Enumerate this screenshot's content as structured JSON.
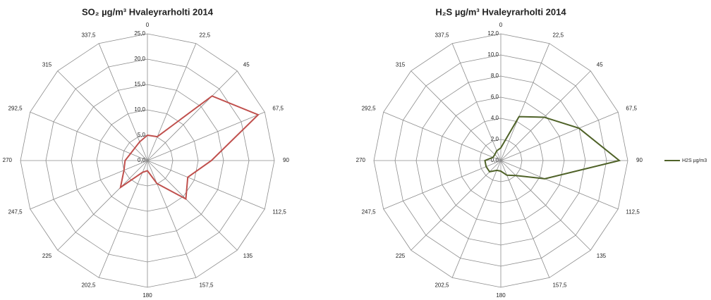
{
  "chart_data": [
    {
      "type": "radar",
      "title": "SO₂ µg/m³ Hvaleyrarholti 2014",
      "categories": [
        "0",
        "22,5",
        "45",
        "67,5",
        "90",
        "112,5",
        "135",
        "157,5",
        "180",
        "202,5",
        "225",
        "247,5",
        "270",
        "292,5",
        "315",
        "337,5"
      ],
      "series": [
        {
          "color": "#c0504d",
          "values": [
            5.0,
            5.1,
            18.0,
            23.6,
            12.6,
            8.6,
            10.7,
            4.9,
            2.0,
            2.5,
            7.5,
            5.0,
            4.4,
            3.6,
            3.5,
            4.0
          ]
        }
      ],
      "ylim": [
        0,
        25
      ],
      "yticks": [
        {
          "value": 0,
          "label": "0,0"
        },
        {
          "value": 5,
          "label": "5,0"
        },
        {
          "value": 10,
          "label": "10,0"
        },
        {
          "value": 15,
          "label": "15,0"
        },
        {
          "value": 20,
          "label": "20,0"
        },
        {
          "value": 25,
          "label": "25,0"
        }
      ]
    },
    {
      "type": "radar",
      "title": "H₂S µg/m³ Hvaleyrarholti 2014",
      "categories": [
        "0",
        "22,5",
        "45",
        "67,5",
        "90",
        "112,5",
        "135",
        "157,5",
        "180",
        "202,5",
        "225",
        "247,5",
        "270",
        "292,5",
        "315",
        "337,5"
      ],
      "series": [
        {
          "name": "H2S µg/m3",
          "color": "#4f6228",
          "values": [
            1.2,
            4.5,
            5.8,
            8.0,
            11.2,
            4.5,
            2.0,
            1.5,
            1.0,
            1.0,
            1.5,
            1.5,
            1.5,
            0.8,
            0.8,
            1.0
          ]
        }
      ],
      "ylim": [
        0,
        12
      ],
      "yticks": [
        {
          "value": 0,
          "label": "0,0"
        },
        {
          "value": 2,
          "label": "2,0"
        },
        {
          "value": 4,
          "label": "4,0"
        },
        {
          "value": 6,
          "label": "6,0"
        },
        {
          "value": 8,
          "label": "8,0"
        },
        {
          "value": 10,
          "label": "10,0"
        },
        {
          "value": 12,
          "label": "12,0"
        }
      ],
      "legend": "right"
    }
  ]
}
